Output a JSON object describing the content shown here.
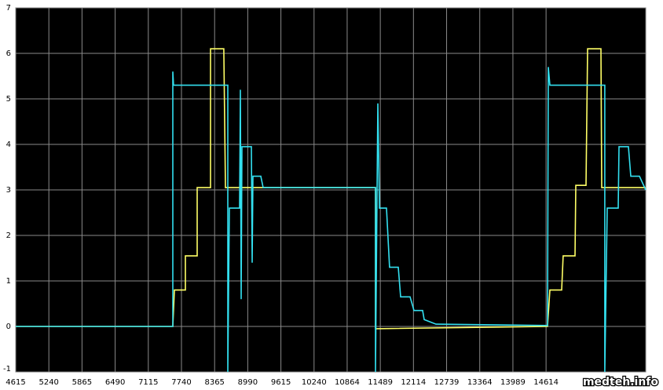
{
  "chart_data": {
    "type": "line",
    "watermark": "medteh.info",
    "xlim": [
      4615,
      16493
    ],
    "ylim": [
      -1,
      7
    ],
    "xticks": [
      4615,
      5240,
      5865,
      6490,
      7115,
      7740,
      8365,
      8990,
      9615,
      10240,
      10864,
      11489,
      12114,
      12739,
      13364,
      13989,
      14614
    ],
    "yticks": [
      -1,
      0,
      1,
      2,
      3,
      4,
      5,
      6,
      7
    ],
    "grid": true,
    "series": [
      {
        "color": "#ffff66",
        "x": [
          4615,
          7577,
          7607,
          7814,
          7814,
          8036,
          8036,
          8288,
          8288,
          8539,
          8569,
          11398,
          11398,
          14641,
          14686,
          14908,
          14937,
          15160,
          15175,
          15367,
          15397,
          15649,
          15663,
          16493
        ],
        "values": [
          0,
          0,
          0.8,
          0.8,
          1.55,
          1.55,
          3.05,
          3.05,
          6.1,
          6.1,
          3.05,
          3.05,
          -0.05,
          0,
          0.8,
          0.8,
          1.55,
          1.55,
          3.1,
          3.1,
          6.1,
          6.1,
          3.05,
          3.05
        ]
      },
      {
        "color": "#33e0f0",
        "x": [
          4615,
          7577,
          7577,
          7590,
          8614,
          8614,
          8643,
          8836,
          8851,
          8865,
          8880,
          9058,
          9073,
          9088,
          9236,
          9280,
          11398,
          11398,
          11442,
          11472,
          11605,
          11664,
          11827,
          11872,
          12050,
          12124,
          12287,
          12316,
          12538,
          14641,
          14656,
          14686,
          15722,
          15722,
          15767,
          15974,
          15989,
          16167,
          16211,
          16374,
          16493
        ],
        "values": [
          0,
          0,
          5.6,
          5.3,
          5.3,
          -1,
          2.6,
          2.6,
          5.2,
          0.6,
          3.95,
          3.95,
          1.4,
          3.3,
          3.3,
          3.05,
          3.05,
          -1,
          4.9,
          2.6,
          2.6,
          1.3,
          1.3,
          0.65,
          0.65,
          0.35,
          0.35,
          0.15,
          0.05,
          0.02,
          5.7,
          5.3,
          5.3,
          -1,
          2.6,
          2.6,
          3.95,
          3.95,
          3.3,
          3.3,
          3.0
        ]
      }
    ]
  }
}
